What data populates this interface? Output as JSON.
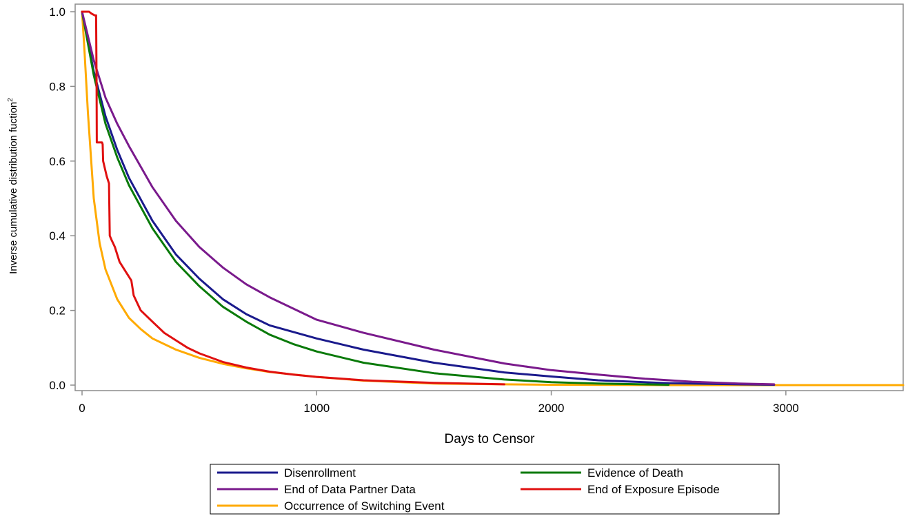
{
  "chart_data": {
    "type": "line",
    "title": "",
    "xlabel": "Days to Censor",
    "ylabel": "Inverse cumulative distribution fuction",
    "ylabel_superscript": "2",
    "xlim": [
      0,
      3500
    ],
    "ylim": [
      0,
      1.0
    ],
    "x_ticks": [
      0,
      1000,
      2000,
      3000
    ],
    "x_tick_labels": [
      "0",
      "1000",
      "2000",
      "3000"
    ],
    "y_ticks": [
      0.0,
      0.2,
      0.4,
      0.6,
      0.8,
      1.0
    ],
    "y_tick_labels": [
      "0.0",
      "0.2",
      "0.4",
      "0.6",
      "0.8",
      "1.0"
    ],
    "grid": false,
    "legend_position": "bottom",
    "series": [
      {
        "name": "Disenrollment",
        "color": "#1a1a8c",
        "x": [
          0,
          50,
          100,
          150,
          200,
          300,
          400,
          500,
          600,
          700,
          800,
          1000,
          1200,
          1500,
          1800,
          2000,
          2200,
          2500,
          2800,
          2950
        ],
        "y": [
          1.0,
          0.84,
          0.72,
          0.63,
          0.555,
          0.44,
          0.35,
          0.285,
          0.23,
          0.19,
          0.16,
          0.125,
          0.095,
          0.06,
          0.034,
          0.023,
          0.013,
          0.005,
          0.002,
          0.001
        ]
      },
      {
        "name": "Evidence of Death",
        "color": "#0a7a0a",
        "x": [
          0,
          50,
          100,
          150,
          200,
          300,
          400,
          500,
          600,
          700,
          800,
          900,
          1000,
          1200,
          1500,
          1800,
          2000,
          2200,
          2500
        ],
        "y": [
          1.0,
          0.83,
          0.7,
          0.61,
          0.535,
          0.42,
          0.33,
          0.265,
          0.21,
          0.17,
          0.135,
          0.11,
          0.09,
          0.06,
          0.032,
          0.015,
          0.008,
          0.004,
          0.001
        ]
      },
      {
        "name": "End of Data Partner Data",
        "color": "#7a1a8c",
        "x": [
          0,
          50,
          100,
          150,
          200,
          300,
          400,
          500,
          600,
          700,
          800,
          1000,
          1200,
          1500,
          1800,
          2000,
          2200,
          2400,
          2600,
          2800,
          2950
        ],
        "y": [
          1.0,
          0.87,
          0.77,
          0.7,
          0.64,
          0.53,
          0.44,
          0.37,
          0.315,
          0.27,
          0.235,
          0.175,
          0.14,
          0.095,
          0.058,
          0.04,
          0.028,
          0.017,
          0.009,
          0.004,
          0.002
        ]
      },
      {
        "name": "End of Exposure Episode",
        "color": "#e01010",
        "x": [
          0,
          10,
          30,
          40,
          55,
          60,
          62,
          63,
          85,
          88,
          90,
          105,
          115,
          118,
          125,
          140,
          160,
          200,
          210,
          220,
          250,
          300,
          350,
          400,
          450,
          500,
          600,
          700,
          800,
          900,
          1000,
          1200,
          1500,
          1800
        ],
        "y": [
          1.0,
          1.0,
          1.0,
          0.995,
          0.99,
          0.99,
          0.8,
          0.65,
          0.65,
          0.645,
          0.6,
          0.56,
          0.54,
          0.4,
          0.39,
          0.37,
          0.33,
          0.29,
          0.28,
          0.24,
          0.2,
          0.17,
          0.14,
          0.12,
          0.1,
          0.085,
          0.062,
          0.047,
          0.036,
          0.028,
          0.022,
          0.013,
          0.006,
          0.002
        ]
      },
      {
        "name": "Occurrence of Switching Event",
        "color": "#ffaa00",
        "x": [
          0,
          10,
          25,
          50,
          75,
          100,
          150,
          200,
          250,
          300,
          400,
          500,
          600,
          700,
          800,
          1000,
          1200,
          1500,
          1800,
          2000,
          2500,
          3000,
          3500
        ],
        "y": [
          1.0,
          0.9,
          0.73,
          0.5,
          0.38,
          0.31,
          0.23,
          0.18,
          0.15,
          0.125,
          0.095,
          0.073,
          0.057,
          0.045,
          0.035,
          0.022,
          0.012,
          0.004,
          0.002,
          0.001,
          0.0,
          0.0,
          0.0
        ]
      }
    ],
    "legend_order": [
      0,
      1,
      2,
      3,
      4
    ]
  }
}
